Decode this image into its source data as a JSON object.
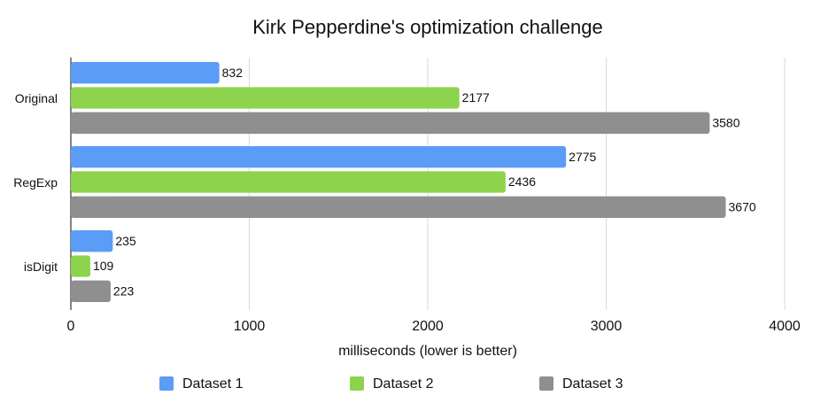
{
  "chart_data": {
    "type": "bar",
    "orientation": "horizontal",
    "title": "Kirk Pepperdine's optimization challenge",
    "x_label": "milliseconds (lower is better)",
    "categories": [
      "Original",
      "RegExp",
      "isDigit"
    ],
    "series": [
      {
        "name": "Dataset 1",
        "color": "#5b9cf6",
        "values": [
          832,
          2775,
          235
        ]
      },
      {
        "name": "Dataset 2",
        "color": "#8dd34d",
        "values": [
          2177,
          2436,
          109
        ]
      },
      {
        "name": "Dataset 3",
        "color": "#8f8f8f",
        "values": [
          3580,
          3670,
          223
        ]
      }
    ],
    "xlim": [
      0,
      4000
    ],
    "xticks": [
      0,
      1000,
      2000,
      3000,
      4000
    ],
    "grid": true,
    "legend": "bottom"
  }
}
